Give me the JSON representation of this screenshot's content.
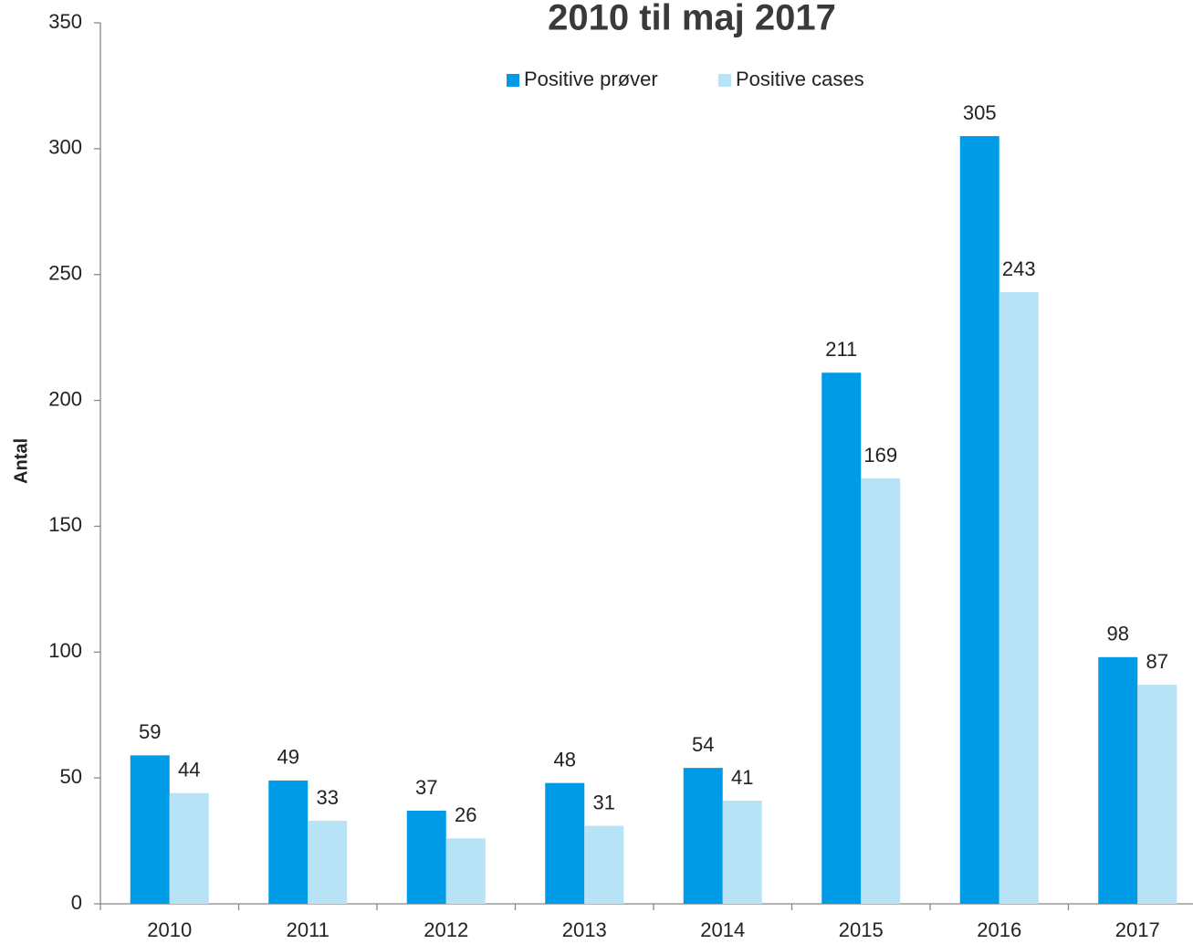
{
  "chart_data": {
    "type": "bar",
    "title": "2010 til maj 2017",
    "y_label": "Antal",
    "categories": [
      "2010",
      "2011",
      "2012",
      "2013",
      "2014",
      "2015",
      "2016",
      "2017"
    ],
    "series": [
      {
        "name": "Positive prøver",
        "color": "#009be6",
        "values": [
          59,
          49,
          37,
          48,
          54,
          211,
          305,
          98
        ]
      },
      {
        "name": "Positive cases",
        "color": "#b8e2f5",
        "values": [
          44,
          33,
          26,
          31,
          41,
          169,
          243,
          87
        ]
      }
    ],
    "ylim": [
      0,
      350
    ],
    "yticks": [
      0,
      50,
      100,
      150,
      200,
      250,
      300,
      350
    ],
    "grid": false,
    "legend": "top"
  }
}
